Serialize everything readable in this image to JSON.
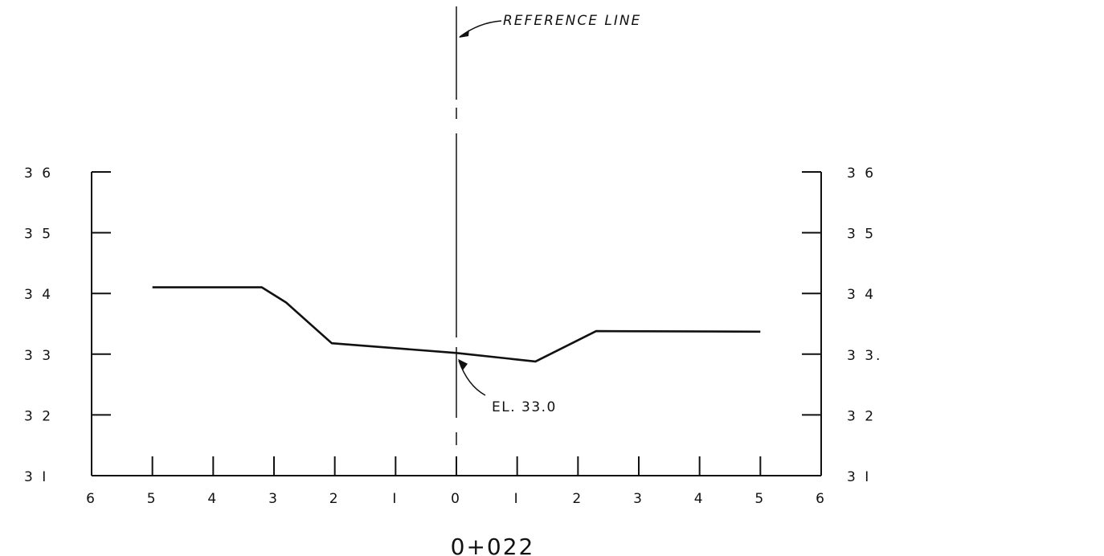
{
  "chart_data": {
    "type": "line",
    "title": "0+022",
    "xlabel": "",
    "ylabel": "",
    "xlim": [
      -6,
      6
    ],
    "ylim": [
      31,
      36
    ],
    "x_ticks": [
      -6,
      -5,
      -4,
      -3,
      -2,
      -1,
      0,
      1,
      2,
      3,
      4,
      5,
      6
    ],
    "x_tick_labels": [
      "6",
      "5",
      "4",
      "3",
      "2",
      "I",
      "0",
      "I",
      "2",
      "3",
      "4",
      "5",
      "6"
    ],
    "y_ticks": [
      31,
      32,
      33,
      34,
      35,
      36
    ],
    "y_tick_labels_left": [
      "3 I",
      "3 2",
      "3 3",
      "3 4",
      "3 5",
      "3 6"
    ],
    "y_tick_labels_right": [
      "3 I",
      "3 2",
      "3 3.",
      "3 4",
      "3 5",
      "3 6"
    ],
    "grid": false,
    "series": [
      {
        "x": [
          -5.0,
          -3.2,
          -2.8,
          -2.05,
          0,
          1.3,
          2.3,
          5.0
        ],
        "y": [
          34.1,
          34.1,
          33.85,
          33.18,
          33.02,
          32.88,
          33.38,
          33.37
        ]
      }
    ],
    "reference_line": {
      "x": 0,
      "label": "REFERENCE LINE"
    },
    "annotations": [
      {
        "label": "EL. 33.0",
        "x": 0,
        "y": 33.0
      }
    ],
    "colors": {
      "ink": "#111111",
      "background": "#ffffff"
    }
  }
}
